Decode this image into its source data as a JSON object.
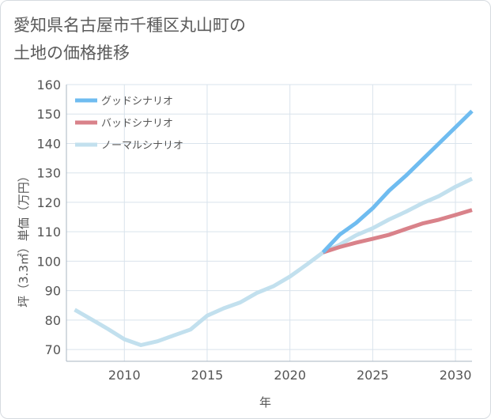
{
  "title": "愛知県名古屋市千種区丸山町の\n土地の価格推移",
  "chart_data": {
    "type": "line",
    "xlabel": "年",
    "ylabel": "坪（3.3㎡）単価（万円）",
    "xlim": [
      2006.5,
      2031
    ],
    "ylim": [
      66,
      160
    ],
    "xticks": [
      2010,
      2015,
      2020,
      2025,
      2030
    ],
    "yticks": [
      70,
      80,
      90,
      100,
      110,
      120,
      130,
      140,
      150,
      160
    ],
    "grid": true,
    "legend_position": "top-left",
    "series": [
      {
        "name": "グッドシナリオ",
        "color": "#6fbcf0",
        "x": [
          2022,
          2023,
          2024,
          2025,
          2026,
          2027,
          2028,
          2029,
          2030,
          2031
        ],
        "y": [
          103,
          109,
          113,
          118,
          124,
          129,
          134.5,
          140,
          145.5,
          151
        ]
      },
      {
        "name": "バッドシナリオ",
        "color": "#d9828a",
        "x": [
          2022,
          2023,
          2024,
          2025,
          2026,
          2027,
          2028,
          2029,
          2030,
          2031
        ],
        "y": [
          103,
          104.8,
          106.3,
          107.6,
          109,
          110.9,
          112.8,
          114.1,
          115.7,
          117.4
        ]
      },
      {
        "name": "ノーマルシナリオ",
        "color": "#c2e0ee",
        "x": [
          2007,
          2008,
          2009,
          2010,
          2011,
          2012,
          2013,
          2014,
          2015,
          2016,
          2017,
          2018,
          2019,
          2020,
          2021,
          2022,
          2023,
          2024,
          2025,
          2026,
          2027,
          2028,
          2029,
          2030,
          2031
        ],
        "y": [
          83.5,
          80.3,
          77,
          73.5,
          71.5,
          72.8,
          74.8,
          76.8,
          81.5,
          84,
          86,
          89.2,
          91.5,
          94.8,
          98.8,
          103,
          105.6,
          108.8,
          111.2,
          114.2,
          116.8,
          119.7,
          122.1,
          125.3,
          128
        ]
      }
    ]
  }
}
